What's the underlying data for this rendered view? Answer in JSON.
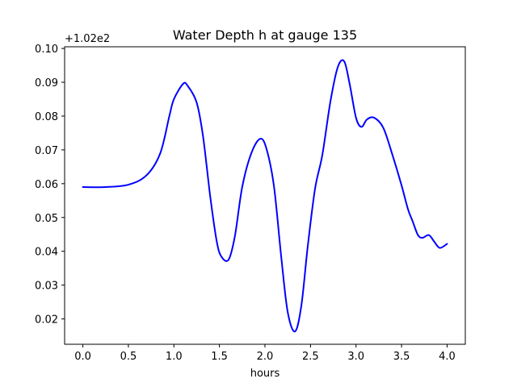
{
  "chart_data": {
    "type": "line",
    "title": "Water Depth h at gauge 135",
    "xlabel": "hours",
    "ylabel": "",
    "offset_label": "+1.02e2",
    "xlim": [
      -0.2,
      4.2
    ],
    "ylim": [
      0.0125,
      0.1005
    ],
    "x_ticks": [
      0.0,
      0.5,
      1.0,
      1.5,
      2.0,
      2.5,
      3.0,
      3.5,
      4.0
    ],
    "x_tick_labels": [
      "0.0",
      "0.5",
      "1.0",
      "1.5",
      "2.0",
      "2.5",
      "3.0",
      "3.5",
      "4.0"
    ],
    "y_ticks": [
      0.02,
      0.03,
      0.04,
      0.05,
      0.06,
      0.07,
      0.08,
      0.09,
      0.1
    ],
    "y_tick_labels": [
      "0.02",
      "0.03",
      "0.04",
      "0.05",
      "0.06",
      "0.07",
      "0.08",
      "0.09",
      "0.10"
    ],
    "grid": false,
    "legend": "none",
    "series": [
      {
        "color": "#0000ff",
        "x": [
          0.0,
          0.25,
          0.5,
          0.7,
          0.85,
          0.95,
          1.0,
          1.1,
          1.15,
          1.25,
          1.32,
          1.4,
          1.47,
          1.52,
          1.6,
          1.67,
          1.75,
          1.85,
          1.95,
          2.02,
          2.1,
          2.18,
          2.25,
          2.33,
          2.4,
          2.47,
          2.55,
          2.63,
          2.72,
          2.8,
          2.87,
          2.93,
          3.0,
          3.06,
          3.12,
          3.2,
          3.3,
          3.4,
          3.5,
          3.57,
          3.62,
          3.68,
          3.73,
          3.8,
          3.86,
          3.92,
          4.0
        ],
        "y": [
          0.059,
          0.059,
          0.0597,
          0.0625,
          0.069,
          0.08,
          0.085,
          0.0895,
          0.089,
          0.084,
          0.074,
          0.056,
          0.043,
          0.0385,
          0.0375,
          0.0445,
          0.059,
          0.069,
          0.0733,
          0.07,
          0.059,
          0.038,
          0.022,
          0.0163,
          0.024,
          0.0415,
          0.0585,
          0.0685,
          0.0845,
          0.0945,
          0.0962,
          0.0895,
          0.0795,
          0.0768,
          0.079,
          0.0795,
          0.0765,
          0.0685,
          0.0595,
          0.0525,
          0.049,
          0.0448,
          0.044,
          0.0448,
          0.0428,
          0.041,
          0.0422
        ]
      }
    ]
  }
}
